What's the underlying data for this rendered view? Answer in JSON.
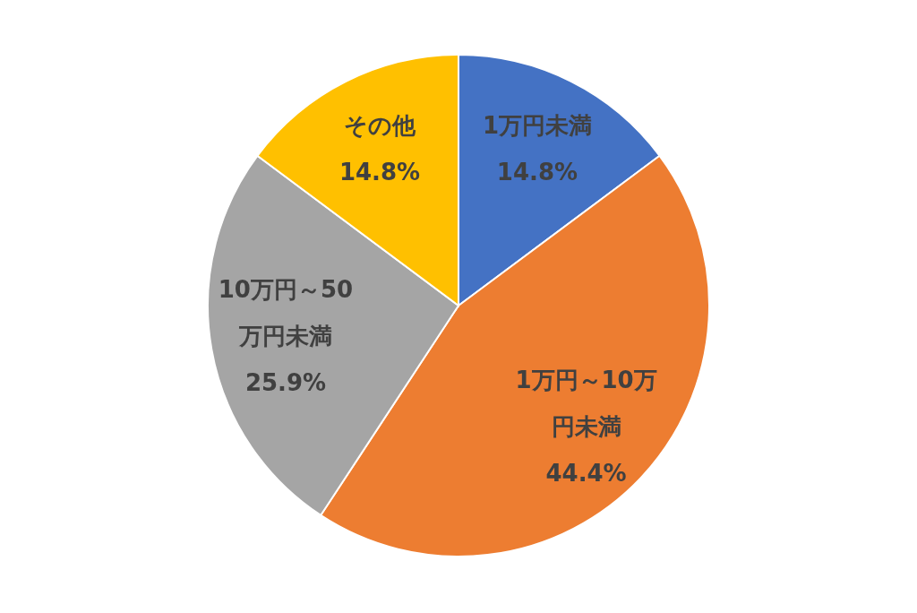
{
  "chart_data": {
    "type": "pie",
    "categories": [
      "1万円未満",
      "1万円～10万円未満",
      "10万円～50万円未満",
      "その他"
    ],
    "values": [
      14.8,
      44.4,
      25.9,
      14.8
    ],
    "colors": [
      "#4472c4",
      "#ed7d31",
      "#a5a5a5",
      "#ffc000"
    ],
    "value_labels": [
      "14.8%",
      "44.4%",
      "25.9%",
      "14.8%"
    ]
  }
}
